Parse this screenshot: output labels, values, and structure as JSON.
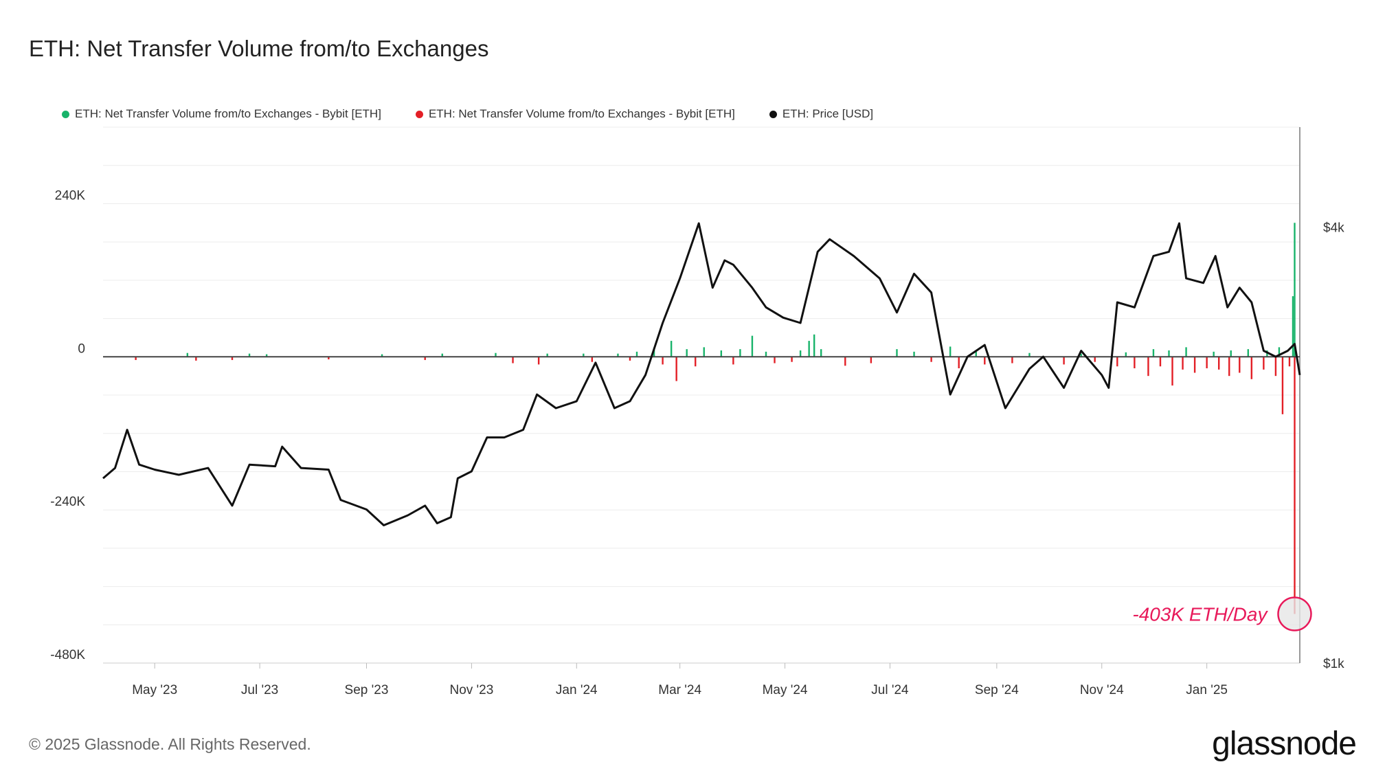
{
  "title": "ETH: Net Transfer Volume from/to Exchanges",
  "legend": [
    {
      "label": "ETH: Net Transfer Volume from/to Exchanges - Bybit [ETH]",
      "color": "#18b36a"
    },
    {
      "label": "ETH: Net Transfer Volume from/to Exchanges - Bybit [ETH]",
      "color": "#e31f26"
    },
    {
      "label": "ETH: Price [USD]",
      "color": "#111111"
    }
  ],
  "footer": {
    "copyright": "© 2025 Glassnode. All Rights Reserved.",
    "brand": "glassnode"
  },
  "chart_data": {
    "type": "bar",
    "title": "ETH: Net Transfer Volume from/to Exchanges",
    "x_range": [
      "2023-04-01",
      "2025-02-24"
    ],
    "x_ticks": [
      "May '23",
      "Jul '23",
      "Sep '23",
      "Nov '23",
      "Jan '24",
      "Mar '24",
      "May '24",
      "Jul '24",
      "Sep '24",
      "Nov '24",
      "Jan '25"
    ],
    "y_left": {
      "ticks": [
        240000,
        0,
        -240000,
        -480000
      ],
      "labels": [
        "240K",
        "0",
        "-240K",
        "-480K"
      ],
      "range": [
        -480000,
        360000
      ]
    },
    "y_right": {
      "ticks": [
        4000,
        1000
      ],
      "labels": [
        "$4k",
        "$1k"
      ],
      "scale": "log",
      "range": [
        1000,
        5500
      ]
    },
    "annotation": {
      "text": "-403K ETH/Day",
      "value": -403000,
      "date": "2025-02-21"
    },
    "series": [
      {
        "name": "ETH: Net Transfer Volume from/to Exchanges - Bybit [ETH] (inflow)",
        "color": "#18b36a",
        "points": [
          [
            "2023-05-20",
            6000
          ],
          [
            "2023-06-25",
            5000
          ],
          [
            "2023-07-05",
            4000
          ],
          [
            "2023-09-10",
            4000
          ],
          [
            "2023-10-15",
            5000
          ],
          [
            "2023-11-15",
            6000
          ],
          [
            "2023-12-15",
            5000
          ],
          [
            "2024-01-05",
            5000
          ],
          [
            "2024-01-25",
            5000
          ],
          [
            "2024-02-05",
            8000
          ],
          [
            "2024-02-15",
            14000
          ],
          [
            "2024-02-25",
            25000
          ],
          [
            "2024-03-05",
            12000
          ],
          [
            "2024-03-15",
            15000
          ],
          [
            "2024-03-25",
            10000
          ],
          [
            "2024-04-05",
            12000
          ],
          [
            "2024-04-12",
            33000
          ],
          [
            "2024-04-20",
            8000
          ],
          [
            "2024-05-10",
            10000
          ],
          [
            "2024-05-15",
            25000
          ],
          [
            "2024-05-18",
            35000
          ],
          [
            "2024-05-22",
            12000
          ],
          [
            "2024-07-05",
            12000
          ],
          [
            "2024-07-15",
            8000
          ],
          [
            "2024-08-05",
            16000
          ],
          [
            "2024-08-20",
            8000
          ],
          [
            "2024-09-20",
            6000
          ],
          [
            "2024-10-20",
            5000
          ],
          [
            "2024-11-15",
            7000
          ],
          [
            "2024-12-01",
            12000
          ],
          [
            "2024-12-10",
            10000
          ],
          [
            "2024-12-20",
            15000
          ],
          [
            "2025-01-05",
            8000
          ],
          [
            "2025-01-15",
            10000
          ],
          [
            "2025-01-25",
            12000
          ],
          [
            "2025-02-05",
            10000
          ],
          [
            "2025-02-12",
            15000
          ],
          [
            "2025-02-20",
            95000
          ],
          [
            "2025-02-21",
            210000
          ]
        ]
      },
      {
        "name": "ETH: Net Transfer Volume from/to Exchanges - Bybit [ETH] (outflow)",
        "color": "#e31f26",
        "points": [
          [
            "2023-04-20",
            -5000
          ],
          [
            "2023-05-25",
            -6000
          ],
          [
            "2023-06-15",
            -5000
          ],
          [
            "2023-08-10",
            -4000
          ],
          [
            "2023-10-05",
            -5000
          ],
          [
            "2023-11-25",
            -10000
          ],
          [
            "2023-12-10",
            -12000
          ],
          [
            "2024-01-10",
            -8000
          ],
          [
            "2024-02-01",
            -6000
          ],
          [
            "2024-02-20",
            -12000
          ],
          [
            "2024-02-28",
            -38000
          ],
          [
            "2024-03-10",
            -15000
          ],
          [
            "2024-04-01",
            -12000
          ],
          [
            "2024-04-25",
            -10000
          ],
          [
            "2024-05-05",
            -8000
          ],
          [
            "2024-06-05",
            -14000
          ],
          [
            "2024-06-20",
            -10000
          ],
          [
            "2024-07-25",
            -8000
          ],
          [
            "2024-08-10",
            -18000
          ],
          [
            "2024-08-25",
            -12000
          ],
          [
            "2024-09-10",
            -10000
          ],
          [
            "2024-10-10",
            -12000
          ],
          [
            "2024-10-28",
            -8000
          ],
          [
            "2024-11-10",
            -15000
          ],
          [
            "2024-11-20",
            -18000
          ],
          [
            "2024-11-28",
            -30000
          ],
          [
            "2024-12-05",
            -15000
          ],
          [
            "2024-12-12",
            -45000
          ],
          [
            "2024-12-18",
            -20000
          ],
          [
            "2024-12-25",
            -25000
          ],
          [
            "2025-01-01",
            -18000
          ],
          [
            "2025-01-08",
            -20000
          ],
          [
            "2025-01-14",
            -30000
          ],
          [
            "2025-01-20",
            -25000
          ],
          [
            "2025-01-27",
            -35000
          ],
          [
            "2025-02-03",
            -20000
          ],
          [
            "2025-02-10",
            -30000
          ],
          [
            "2025-02-14",
            -90000
          ],
          [
            "2025-02-18",
            -15000
          ],
          [
            "2025-02-21",
            -403000
          ]
        ]
      },
      {
        "name": "ETH: Price [USD]",
        "color": "#111111",
        "type": "line",
        "points": [
          [
            "2023-04-01",
            1800
          ],
          [
            "2023-04-08",
            1860
          ],
          [
            "2023-04-15",
            2100
          ],
          [
            "2023-04-22",
            1880
          ],
          [
            "2023-05-01",
            1850
          ],
          [
            "2023-05-15",
            1820
          ],
          [
            "2023-06-01",
            1860
          ],
          [
            "2023-06-15",
            1650
          ],
          [
            "2023-06-25",
            1880
          ],
          [
            "2023-07-10",
            1870
          ],
          [
            "2023-07-14",
            1990
          ],
          [
            "2023-07-25",
            1860
          ],
          [
            "2023-08-10",
            1850
          ],
          [
            "2023-08-17",
            1680
          ],
          [
            "2023-09-01",
            1630
          ],
          [
            "2023-09-11",
            1550
          ],
          [
            "2023-09-25",
            1600
          ],
          [
            "2023-10-05",
            1650
          ],
          [
            "2023-10-12",
            1560
          ],
          [
            "2023-10-20",
            1590
          ],
          [
            "2023-10-24",
            1800
          ],
          [
            "2023-11-01",
            1840
          ],
          [
            "2023-11-10",
            2050
          ],
          [
            "2023-11-20",
            2050
          ],
          [
            "2023-12-01",
            2100
          ],
          [
            "2023-12-09",
            2350
          ],
          [
            "2023-12-20",
            2250
          ],
          [
            "2024-01-01",
            2300
          ],
          [
            "2024-01-12",
            2600
          ],
          [
            "2024-01-23",
            2250
          ],
          [
            "2024-02-01",
            2300
          ],
          [
            "2024-02-10",
            2500
          ],
          [
            "2024-02-20",
            2950
          ],
          [
            "2024-03-01",
            3400
          ],
          [
            "2024-03-12",
            4050
          ],
          [
            "2024-03-20",
            3300
          ],
          [
            "2024-03-27",
            3600
          ],
          [
            "2024-04-01",
            3550
          ],
          [
            "2024-04-12",
            3300
          ],
          [
            "2024-04-20",
            3100
          ],
          [
            "2024-04-30",
            3000
          ],
          [
            "2024-05-10",
            2950
          ],
          [
            "2024-05-20",
            3700
          ],
          [
            "2024-05-27",
            3850
          ],
          [
            "2024-06-10",
            3650
          ],
          [
            "2024-06-25",
            3400
          ],
          [
            "2024-07-05",
            3050
          ],
          [
            "2024-07-15",
            3450
          ],
          [
            "2024-07-25",
            3250
          ],
          [
            "2024-08-05",
            2350
          ],
          [
            "2024-08-15",
            2650
          ],
          [
            "2024-08-25",
            2750
          ],
          [
            "2024-09-06",
            2250
          ],
          [
            "2024-09-20",
            2550
          ],
          [
            "2024-09-28",
            2650
          ],
          [
            "2024-10-10",
            2400
          ],
          [
            "2024-10-20",
            2700
          ],
          [
            "2024-11-01",
            2500
          ],
          [
            "2024-11-05",
            2400
          ],
          [
            "2024-11-10",
            3150
          ],
          [
            "2024-11-20",
            3100
          ],
          [
            "2024-12-01",
            3650
          ],
          [
            "2024-12-10",
            3700
          ],
          [
            "2024-12-16",
            4050
          ],
          [
            "2024-12-20",
            3400
          ],
          [
            "2024-12-30",
            3350
          ],
          [
            "2025-01-06",
            3650
          ],
          [
            "2025-01-13",
            3100
          ],
          [
            "2025-01-20",
            3300
          ],
          [
            "2025-01-27",
            3150
          ],
          [
            "2025-02-03",
            2700
          ],
          [
            "2025-02-10",
            2650
          ],
          [
            "2025-02-17",
            2700
          ],
          [
            "2025-02-21",
            2760
          ],
          [
            "2025-02-24",
            2500
          ]
        ]
      }
    ]
  }
}
